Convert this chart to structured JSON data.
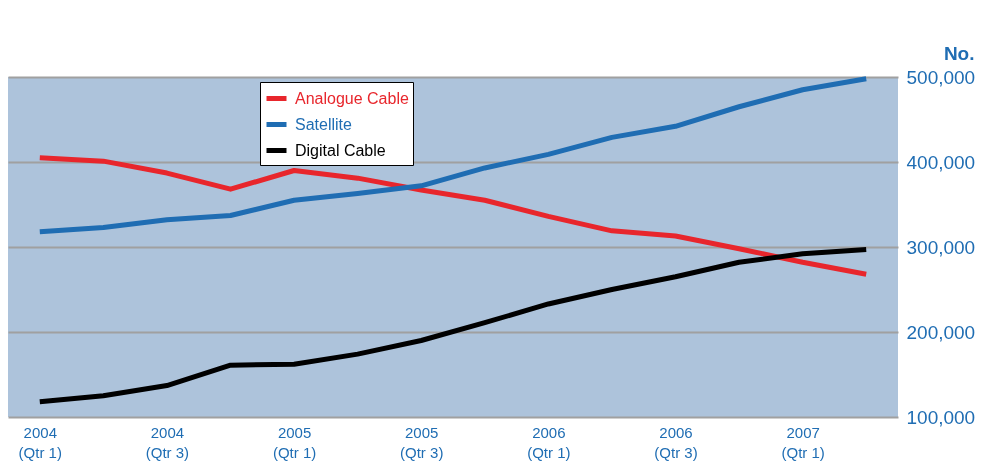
{
  "chart_data": {
    "type": "line",
    "ylabel": "No.",
    "categories": [
      "2004\n(Qtr 1)",
      null,
      "2004\n(Qtr 3)",
      null,
      "2005\n(Qtr 1)",
      null,
      "2005\n(Qtr 3)",
      null,
      "2006\n(Qtr 1)",
      null,
      "2006\n(Qtr 3)",
      null,
      "2007\n(Qtr 1)",
      null
    ],
    "series": [
      {
        "name": "Analogue Cable",
        "color": "#e8262c",
        "values": [
          405000,
          401000,
          387000,
          368000,
          390000,
          381000,
          367000,
          355000,
          336000,
          319000,
          313000,
          298000,
          282000,
          268000
        ]
      },
      {
        "name": "Satellite",
        "color": "#1f6db3",
        "values": [
          318000,
          323000,
          332000,
          337000,
          355000,
          363000,
          372000,
          393000,
          409000,
          429000,
          442000,
          465000,
          485000,
          498000
        ]
      },
      {
        "name": "Digital Cable",
        "color": "#000000",
        "values": [
          118000,
          125000,
          137000,
          161000,
          162000,
          174000,
          190000,
          211000,
          233000,
          250000,
          265000,
          282000,
          292000,
          297000
        ]
      }
    ],
    "ylim": [
      100000,
      500000
    ],
    "yticks": [
      {
        "value": 100000,
        "label": "100,000"
      },
      {
        "value": 200000,
        "label": "200,000"
      },
      {
        "value": 300000,
        "label": "300,000"
      },
      {
        "value": 400000,
        "label": "400,000"
      },
      {
        "value": 500000,
        "label": "500,000"
      }
    ],
    "grid": "y",
    "legend": "top",
    "line_style": "solid",
    "marker": "none"
  }
}
